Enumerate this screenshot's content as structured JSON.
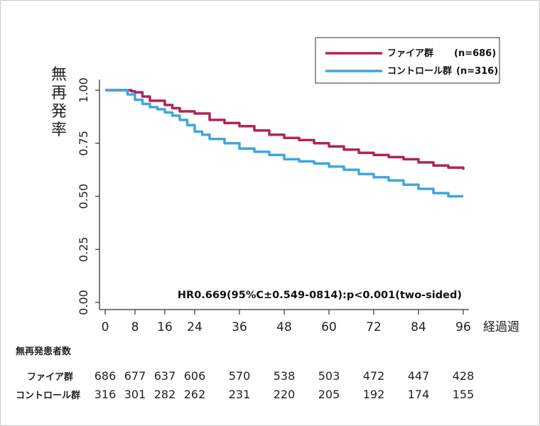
{
  "chart_data": {
    "type": "line",
    "ylabel": "無再発率",
    "xlabel": "経過週",
    "xticks": [
      0,
      8,
      16,
      24,
      36,
      48,
      60,
      72,
      84,
      96
    ],
    "xlim": [
      0,
      96
    ],
    "yticks": [
      "0.00",
      "0.25",
      "0.50",
      "0.75",
      "1.00"
    ],
    "ylim": [
      0,
      1
    ],
    "legend_position": "top-right",
    "annotation": "HR0.669(95%C±0.549-0814):p<0.001(two-sided)",
    "series": [
      {
        "name": "ファイア群",
        "n_label": "(n=686)",
        "color": "#b0245a",
        "x": [
          0,
          5,
          7,
          8,
          10,
          12,
          16,
          18,
          20,
          24,
          28,
          32,
          36,
          40,
          44,
          48,
          52,
          56,
          60,
          64,
          68,
          72,
          76,
          80,
          84,
          88,
          92,
          95,
          96
        ],
        "y": [
          1.0,
          1.0,
          0.995,
          0.99,
          0.97,
          0.95,
          0.93,
          0.915,
          0.9,
          0.89,
          0.86,
          0.845,
          0.83,
          0.81,
          0.79,
          0.775,
          0.765,
          0.75,
          0.735,
          0.72,
          0.705,
          0.695,
          0.685,
          0.675,
          0.66,
          0.645,
          0.635,
          0.635,
          0.625
        ]
      },
      {
        "name": "コントロール群",
        "n_label": "(n=316)",
        "color": "#3fa7dc",
        "x": [
          0,
          5,
          6,
          8,
          10,
          12,
          14,
          16,
          18,
          20,
          22,
          24,
          26,
          28,
          32,
          36,
          40,
          44,
          48,
          52,
          56,
          60,
          64,
          68,
          72,
          76,
          80,
          84,
          88,
          92,
          95,
          96
        ],
        "y": [
          1.0,
          1.0,
          0.98,
          0.955,
          0.935,
          0.92,
          0.91,
          0.895,
          0.88,
          0.86,
          0.835,
          0.805,
          0.79,
          0.77,
          0.75,
          0.725,
          0.71,
          0.695,
          0.675,
          0.665,
          0.655,
          0.64,
          0.625,
          0.605,
          0.59,
          0.575,
          0.555,
          0.535,
          0.515,
          0.5,
          0.5,
          0.5
        ]
      }
    ]
  },
  "risk_table": {
    "title": "無再発患者数",
    "rows": [
      {
        "label": "ファイア群",
        "values": [
          686,
          677,
          637,
          606,
          570,
          538,
          503,
          472,
          447,
          428
        ]
      },
      {
        "label": "コントロール群",
        "values": [
          316,
          301,
          282,
          262,
          231,
          220,
          205,
          192,
          174,
          155
        ]
      }
    ]
  }
}
